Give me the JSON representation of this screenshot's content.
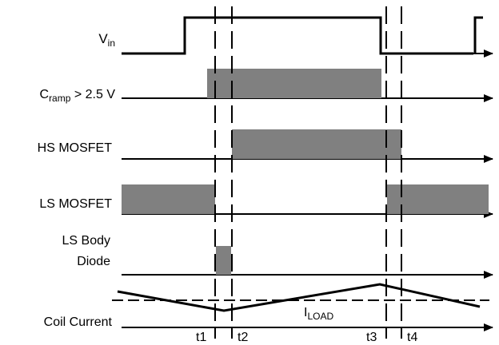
{
  "signals": {
    "vin": {
      "base": "V",
      "sub": "in"
    },
    "cramp": {
      "base": "C",
      "sub": "ramp",
      "suffix": " > 2.5 V"
    },
    "hs": "HS MOSFET",
    "ls": "LS MOSFET",
    "body_diode_line1": "LS Body",
    "body_diode_line2": "Diode",
    "coil": "Coil Current"
  },
  "iload": {
    "base": "I",
    "sub": "LOAD"
  },
  "time_markers": [
    "t1",
    "t2",
    "t3",
    "t4"
  ],
  "colors": {
    "pulse_fill": "#808080",
    "line": "#000000"
  }
}
